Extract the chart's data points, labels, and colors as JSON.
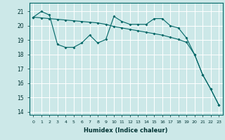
{
  "xlabel": "Humidex (Indice chaleur)",
  "bg_color": "#cce8e8",
  "grid_color": "#ffffff",
  "line_color": "#006666",
  "xlim": [
    -0.5,
    23.5
  ],
  "ylim": [
    13.8,
    21.6
  ],
  "yticks": [
    14,
    15,
    16,
    17,
    18,
    19,
    20,
    21
  ],
  "xticks": [
    0,
    1,
    2,
    3,
    4,
    5,
    6,
    7,
    8,
    9,
    10,
    11,
    12,
    13,
    14,
    15,
    16,
    17,
    18,
    19,
    20,
    21,
    22,
    23
  ],
  "line1_x": [
    0,
    1,
    2,
    3,
    4,
    5,
    6,
    7,
    8,
    9,
    10,
    11,
    12,
    13,
    14,
    15,
    16,
    17,
    18,
    19,
    20,
    21,
    22,
    23
  ],
  "line1_y": [
    20.6,
    20.55,
    20.5,
    20.45,
    20.4,
    20.35,
    20.3,
    20.25,
    20.2,
    20.1,
    19.95,
    19.85,
    19.75,
    19.65,
    19.55,
    19.45,
    19.35,
    19.2,
    19.05,
    18.85,
    18.0,
    16.6,
    15.6,
    14.5
  ],
  "line2_x": [
    0,
    1,
    2,
    3,
    4,
    5,
    6,
    7,
    8,
    9,
    10,
    11,
    12,
    13,
    14,
    15,
    16,
    17,
    18,
    19,
    20,
    21,
    22,
    23
  ],
  "line2_y": [
    20.6,
    21.0,
    20.75,
    18.7,
    18.5,
    18.5,
    18.8,
    19.35,
    18.8,
    19.05,
    20.65,
    20.3,
    20.1,
    20.1,
    20.1,
    20.5,
    20.5,
    20.0,
    19.85,
    19.15,
    18.0,
    16.6,
    15.6,
    14.5
  ]
}
